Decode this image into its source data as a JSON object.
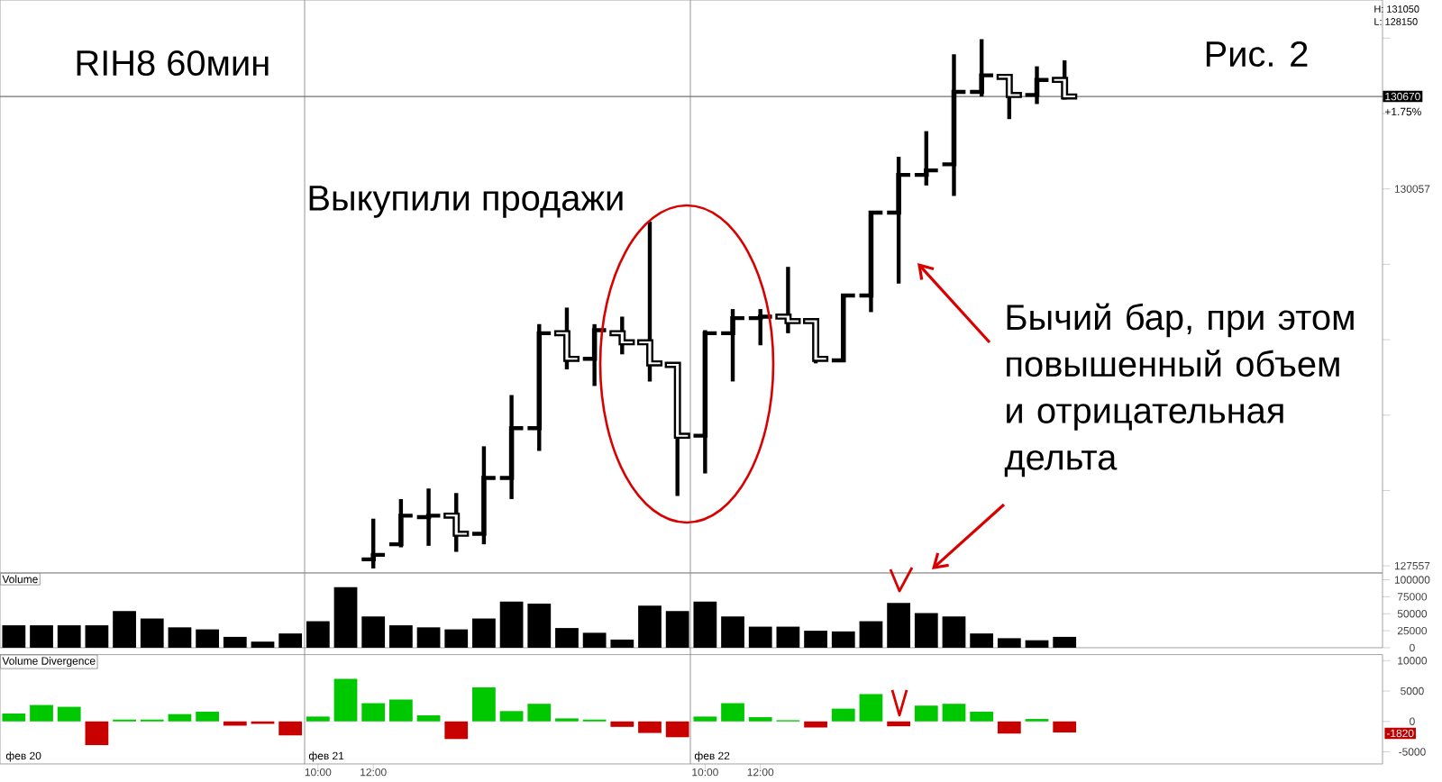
{
  "chart_data": [
    {
      "type": "candlestick",
      "title": "RIH8 60мин",
      "color": "#000000",
      "categories": [
        null,
        null,
        null,
        null,
        null,
        null,
        null,
        null,
        null,
        null,
        null,
        null,
        null,
        null,
        null,
        null,
        null,
        null,
        null,
        null,
        null,
        null,
        null,
        null,
        null,
        null,
        null,
        null,
        null,
        null,
        null,
        null,
        null,
        null,
        null,
        null,
        null,
        null,
        null,
        null,
        null,
        null,
        null,
        null,
        null,
        null,
        null,
        null,
        null,
        null
      ],
      "ohlc": [
        null,
        null,
        null,
        null,
        null,
        null,
        null,
        null,
        null,
        null,
        null,
        null,
        null,
        [
          127600,
          127870,
          127540,
          127630
        ],
        [
          127700,
          128000,
          127680,
          127890
        ],
        [
          127880,
          128070,
          127690,
          127890
        ],
        [
          127890,
          128040,
          127650,
          127770
        ],
        [
          127770,
          128350,
          127700,
          128140
        ],
        [
          128140,
          128690,
          128000,
          128470
        ],
        [
          128470,
          129160,
          128320,
          129100
        ],
        [
          129100,
          129270,
          128860,
          128930
        ],
        [
          128930,
          129160,
          128750,
          129120
        ],
        [
          129100,
          129210,
          128960,
          129040
        ],
        [
          129040,
          129840,
          128780,
          128900
        ],
        [
          128890,
          128900,
          128020,
          128420
        ],
        [
          128420,
          129120,
          128170,
          129100
        ],
        [
          129100,
          129260,
          128780,
          129200
        ],
        [
          129200,
          129260,
          129020,
          129210
        ],
        [
          129210,
          129540,
          129100,
          129180
        ],
        [
          129180,
          129180,
          128900,
          128930
        ],
        [
          128920,
          129360,
          128920,
          129350
        ],
        [
          129350,
          129910,
          129240,
          129900
        ],
        [
          129900,
          130270,
          129430,
          130150
        ],
        [
          130150,
          130440,
          130080,
          130180
        ],
        [
          130220,
          130950,
          130010,
          130700
        ],
        [
          130700,
          131050,
          130670,
          130810
        ],
        [
          130800,
          130810,
          130520,
          130680
        ],
        [
          130680,
          130870,
          130620,
          130780
        ],
        [
          130780,
          130910,
          130650,
          130670
        ],
        null,
        null,
        null,
        null,
        null,
        null,
        null,
        null,
        null,
        null,
        null
      ],
      "ylim": [
        127510,
        131310
      ],
      "yticks": [
        127557,
        {
          "value": 128057,
          "label": null
        },
        {
          "value": 128557,
          "label": null
        },
        {
          "value": 129057,
          "label": null
        },
        {
          "value": 129557,
          "label": null
        },
        130057,
        {
          "value": 130557,
          "label": null
        },
        {
          "value": 131057,
          "label": null
        }
      ],
      "tick_labels": "y",
      "ref_lines": [
        {
          "axis": "y",
          "value": 130670,
          "label": "130670"
        }
      ],
      "annotations": [
        "Рис. 2",
        "H: 131050",
        "L: 128150",
        "Выкупили продажи",
        "Бычий бар, при этом повышенный объем и отрицательная дельта",
        "+1.75%"
      ]
    },
    {
      "type": "bar",
      "title": "Volume",
      "color": "#000000",
      "categories": [
        null,
        null,
        null,
        null,
        null,
        null,
        null,
        null,
        null,
        null,
        null,
        null,
        null,
        null,
        null,
        null,
        null,
        null,
        null,
        null,
        null,
        null,
        null,
        null,
        null,
        null,
        null,
        null,
        null,
        null,
        null,
        null,
        null,
        null,
        null,
        null,
        null,
        null,
        null,
        null,
        null,
        null,
        null,
        null,
        null,
        null,
        null,
        null,
        null,
        null
      ],
      "values": [
        33000,
        33000,
        33000,
        33000,
        54000,
        43000,
        30000,
        27000,
        16000,
        9000,
        21000,
        39000,
        89000,
        46000,
        33000,
        30000,
        27000,
        43000,
        68000,
        65000,
        29000,
        22000,
        12000,
        62000,
        54000,
        68000,
        46000,
        31000,
        31000,
        25000,
        24000,
        39000,
        66000,
        51000,
        46000,
        21000,
        14000,
        11000,
        16000,
        null,
        null,
        null,
        null,
        null,
        null,
        null,
        null,
        null,
        null,
        null
      ],
      "ylim": [
        0,
        110000
      ],
      "yticks": [
        0,
        25000,
        50000,
        75000,
        100000
      ],
      "tick_labels": "y"
    },
    {
      "type": "bar",
      "title": "Volume Divergence",
      "categories": [
        null,
        null,
        null,
        null,
        null,
        null,
        null,
        null,
        null,
        null,
        null,
        "10:00",
        null,
        "12:00",
        null,
        null,
        null,
        null,
        null,
        null,
        null,
        null,
        null,
        null,
        null,
        "10:00",
        null,
        "12:00",
        null,
        null,
        null,
        null,
        null,
        null,
        null,
        null,
        null,
        null,
        null,
        null,
        null,
        null,
        null,
        null,
        null,
        null,
        null,
        null,
        null,
        null
      ],
      "values": [
        1300,
        2700,
        2400,
        -3900,
        300,
        300,
        1200,
        1600,
        -700,
        -400,
        -2300,
        800,
        7000,
        3000,
        3600,
        1000,
        -2900,
        5600,
        1700,
        2900,
        500,
        300,
        -900,
        -1900,
        -2600,
        800,
        3000,
        700,
        200,
        -1000,
        2100,
        4500,
        -800,
        2600,
        2900,
        1600,
        -2000,
        400,
        -1820,
        null,
        null,
        null,
        null,
        null,
        null,
        null,
        null,
        null,
        null,
        null
      ],
      "colors": [
        "#00c800",
        "#00c800",
        "#00c800",
        "#c80000",
        "#00c800",
        "#00c800",
        "#00c800",
        "#00c800",
        "#c80000",
        "#c80000",
        "#c80000",
        "#00c800",
        "#00c800",
        "#00c800",
        "#00c800",
        "#00c800",
        "#c80000",
        "#00c800",
        "#00c800",
        "#00c800",
        "#00c800",
        "#00c800",
        "#c80000",
        "#c80000",
        "#c80000",
        "#00c800",
        "#00c800",
        "#00c800",
        "#00c800",
        "#c80000",
        "#00c800",
        "#00c800",
        "#c80000",
        "#00c800",
        "#00c800",
        "#00c800",
        "#c80000",
        "#00c800",
        "#c80000",
        null,
        null,
        null,
        null,
        null,
        null,
        null,
        null,
        null,
        null,
        null
      ],
      "ylim": [
        -7000,
        11000
      ],
      "yticks": [
        -5000,
        0,
        5000,
        10000
      ],
      "annotations": [
        "фев 20",
        "фев 21",
        "фев 22",
        "-1820"
      ]
    }
  ]
}
